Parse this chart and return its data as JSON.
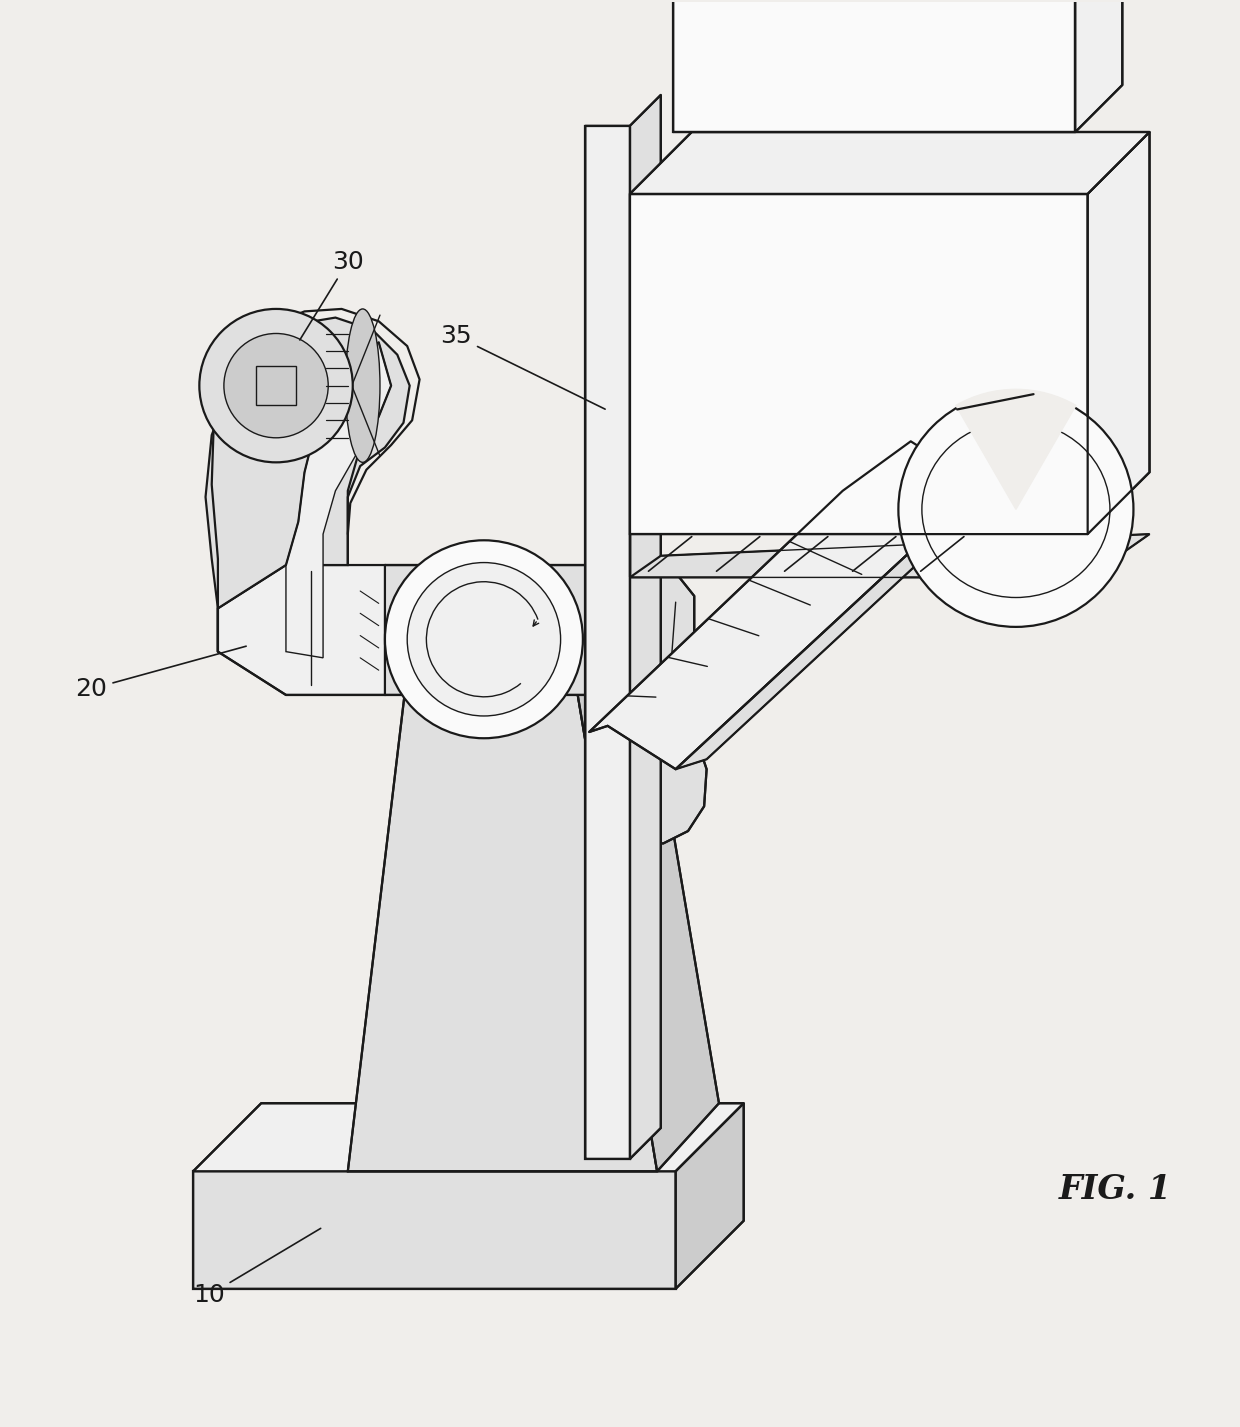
{
  "bg": "#f0eeeb",
  "lc": "#1a1a1a",
  "lw": 1.6,
  "lwt": 1.0,
  "fig_label": "FIG. 1",
  "label_10": "10",
  "label_20": "20",
  "label_30": "30",
  "label_35": "35",
  "font_size": 16,
  "fig_font_size": 24,
  "fig_w": 12.4,
  "fig_h": 14.27,
  "fc_light": "#f0f0f0",
  "fc_mid": "#e0e0e0",
  "fc_dark": "#cccccc",
  "fc_white": "#fafafa"
}
